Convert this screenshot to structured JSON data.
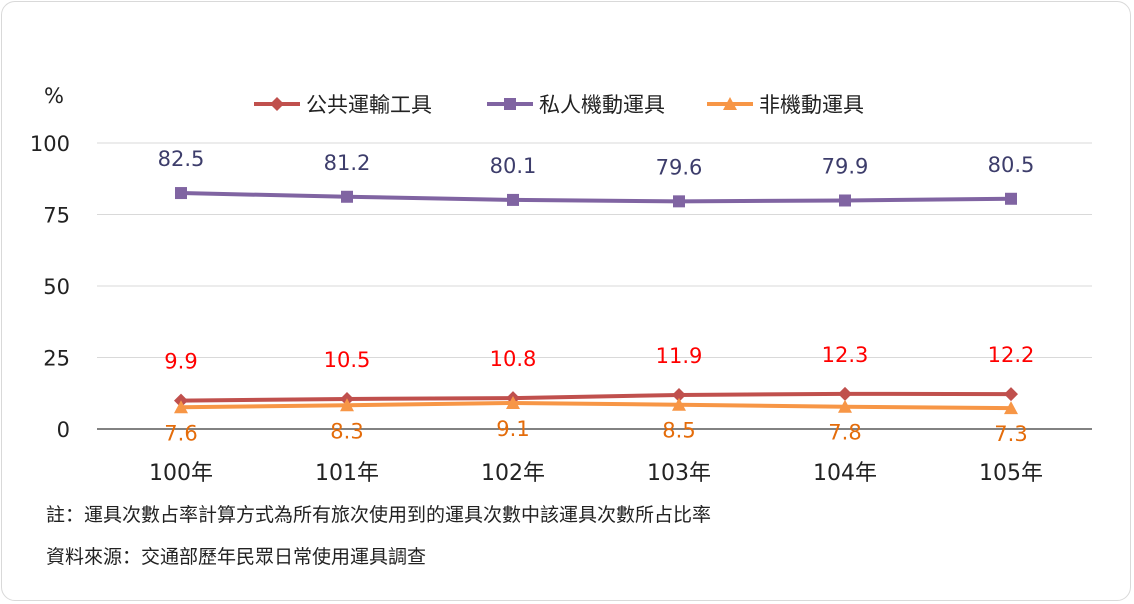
{
  "chart_data": {
    "type": "line",
    "ylabel": "%",
    "ylim": [
      0,
      100
    ],
    "yticks": [
      0,
      25,
      50,
      75,
      100
    ],
    "grid": true,
    "legend_position": "top-center",
    "categories": [
      "100年",
      "101年",
      "102年",
      "103年",
      "104年",
      "105年"
    ],
    "series": [
      {
        "name": "公共運輸工具",
        "color": "#c0504d",
        "label_color": "#ff0000",
        "marker": "diamond",
        "label_position": "above",
        "values": [
          9.9,
          10.5,
          10.8,
          11.9,
          12.3,
          12.2
        ]
      },
      {
        "name": "私人機動運具",
        "color": "#8064a2",
        "label_color": "#3d3d6b",
        "marker": "square",
        "label_position": "above",
        "values": [
          82.5,
          81.2,
          80.1,
          79.6,
          79.9,
          80.5
        ]
      },
      {
        "name": "非機動運具",
        "color": "#f79646",
        "label_color": "#e46c0a",
        "marker": "triangle",
        "label_position": "below",
        "values": [
          7.6,
          8.3,
          9.1,
          8.5,
          7.8,
          7.3
        ]
      }
    ]
  },
  "notes": {
    "note1": "註：運具次數占率計算方式為所有旅次使用到的運具次數中該運具次數所占比率",
    "note2": "資料來源：交通部歷年民眾日常使用運具調查"
  }
}
